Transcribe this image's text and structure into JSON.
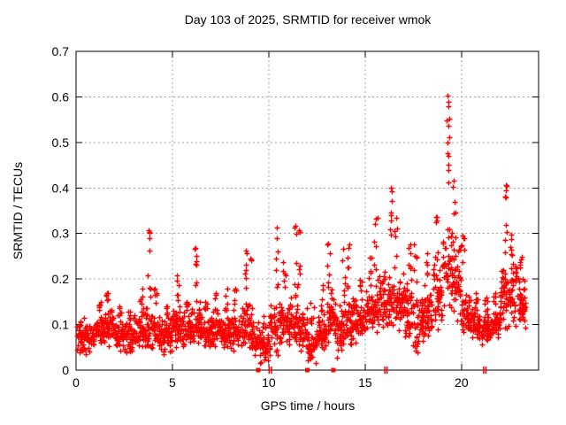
{
  "chart_data": {
    "type": "scatter",
    "title": "Day 103 of 2025, SRMTID for receiver wmok",
    "xlabel": "GPS time / hours",
    "ylabel": "SRMTID / TECUs",
    "xlim": [
      0,
      24
    ],
    "ylim": [
      0,
      0.7
    ],
    "xticks": [
      0,
      5,
      10,
      15,
      20
    ],
    "xtick_labels": [
      "0",
      "5",
      "10",
      "15",
      "20"
    ],
    "yticks": [
      0,
      0.1,
      0.2,
      0.3,
      0.4,
      0.5,
      0.6,
      0.7
    ],
    "ytick_labels": [
      "0",
      "0.1",
      "0.2",
      "0.3",
      "0.4",
      "0.5",
      "0.6",
      "0.7"
    ],
    "grid": true,
    "grid_color": "#a0a0a0",
    "marker": "plus",
    "marker_color": "#ff0000",
    "border_color": "#000000",
    "seed": 1032025,
    "points_per_bin": 44,
    "bins_format": [
      "t_start",
      "t_width",
      "y_low",
      "y_typical_high",
      "y_max",
      "peak_time_or_null"
    ],
    "bins": [
      [
        0.0,
        0.5,
        0.03,
        0.12,
        0.13,
        null
      ],
      [
        0.5,
        0.5,
        0.04,
        0.11,
        0.12,
        null
      ],
      [
        1.0,
        0.5,
        0.05,
        0.13,
        0.15,
        null
      ],
      [
        1.5,
        0.5,
        0.05,
        0.15,
        0.17,
        1.6
      ],
      [
        2.0,
        0.5,
        0.04,
        0.12,
        0.14,
        null
      ],
      [
        2.5,
        0.5,
        0.03,
        0.11,
        0.13,
        null
      ],
      [
        3.0,
        0.5,
        0.04,
        0.13,
        0.18,
        3.4
      ],
      [
        3.5,
        0.5,
        0.04,
        0.15,
        0.31,
        3.8
      ],
      [
        4.0,
        0.5,
        0.04,
        0.13,
        0.18,
        4.1
      ],
      [
        4.5,
        0.5,
        0.03,
        0.12,
        0.14,
        null
      ],
      [
        5.0,
        0.5,
        0.05,
        0.15,
        0.21,
        5.3
      ],
      [
        5.5,
        0.5,
        0.04,
        0.13,
        0.15,
        null
      ],
      [
        6.0,
        0.5,
        0.05,
        0.16,
        0.27,
        6.2
      ],
      [
        6.5,
        0.5,
        0.04,
        0.13,
        0.15,
        null
      ],
      [
        7.0,
        0.5,
        0.05,
        0.13,
        0.17,
        null
      ],
      [
        7.5,
        0.5,
        0.04,
        0.13,
        0.18,
        7.8
      ],
      [
        8.0,
        0.5,
        0.03,
        0.13,
        0.18,
        null
      ],
      [
        8.5,
        0.5,
        0.04,
        0.16,
        0.26,
        8.8
      ],
      [
        9.0,
        0.5,
        0.02,
        0.11,
        0.25,
        9.05
      ],
      [
        9.5,
        0.5,
        0.01,
        0.09,
        0.12,
        null
      ],
      [
        10.0,
        0.5,
        0.02,
        0.16,
        0.32,
        10.4
      ],
      [
        10.5,
        0.5,
        0.05,
        0.16,
        0.24,
        10.8
      ],
      [
        11.0,
        0.5,
        0.05,
        0.16,
        0.32,
        11.4
      ],
      [
        11.5,
        0.5,
        0.03,
        0.14,
        0.31,
        11.55
      ],
      [
        12.0,
        0.5,
        0.01,
        0.1,
        0.15,
        null
      ],
      [
        12.5,
        0.5,
        0.04,
        0.13,
        0.19,
        null
      ],
      [
        13.0,
        0.5,
        0.05,
        0.18,
        0.28,
        13.1
      ],
      [
        13.5,
        0.5,
        0.02,
        0.16,
        0.27,
        13.9
      ],
      [
        14.0,
        0.5,
        0.05,
        0.17,
        0.28,
        14.15
      ],
      [
        14.5,
        0.5,
        0.06,
        0.15,
        0.2,
        null
      ],
      [
        15.0,
        0.5,
        0.08,
        0.18,
        0.25,
        null
      ],
      [
        15.5,
        0.5,
        0.08,
        0.22,
        0.34,
        15.55
      ],
      [
        16.0,
        0.5,
        0.08,
        0.22,
        0.4,
        16.35
      ],
      [
        16.5,
        0.5,
        0.08,
        0.22,
        0.34,
        16.6
      ],
      [
        17.0,
        0.5,
        0.06,
        0.2,
        0.28,
        17.3
      ],
      [
        17.5,
        0.5,
        0.03,
        0.18,
        0.28,
        17.6
      ],
      [
        18.0,
        0.5,
        0.06,
        0.2,
        0.26,
        null
      ],
      [
        18.5,
        0.5,
        0.08,
        0.24,
        0.34,
        18.7
      ],
      [
        19.0,
        0.5,
        0.1,
        0.34,
        0.6,
        19.3
      ],
      [
        19.5,
        0.5,
        0.1,
        0.3,
        0.42,
        19.6
      ],
      [
        20.0,
        0.5,
        0.07,
        0.18,
        0.3,
        20.1
      ],
      [
        20.5,
        0.5,
        0.06,
        0.14,
        0.17,
        null
      ],
      [
        21.0,
        0.5,
        0.05,
        0.13,
        0.16,
        null
      ],
      [
        21.5,
        0.5,
        0.06,
        0.14,
        0.17,
        null
      ],
      [
        22.0,
        0.5,
        0.08,
        0.25,
        0.41,
        22.3
      ],
      [
        22.5,
        0.5,
        0.08,
        0.25,
        0.3,
        22.6
      ],
      [
        23.0,
        0.35,
        0.08,
        0.2,
        0.25,
        23.1
      ]
    ],
    "peak_points": [
      [
        3.78,
        0.307
      ],
      [
        3.8,
        0.29
      ],
      [
        3.82,
        0.262
      ],
      [
        6.2,
        0.268
      ],
      [
        6.23,
        0.24
      ],
      [
        8.8,
        0.262
      ],
      [
        10.4,
        0.313
      ],
      [
        10.43,
        0.29
      ],
      [
        11.38,
        0.317
      ],
      [
        11.42,
        0.3
      ],
      [
        13.08,
        0.278
      ],
      [
        14.15,
        0.268
      ],
      [
        15.55,
        0.333
      ],
      [
        16.35,
        0.4
      ],
      [
        16.4,
        0.372
      ],
      [
        18.7,
        0.337
      ],
      [
        19.28,
        0.603
      ],
      [
        19.3,
        0.58
      ],
      [
        19.31,
        0.537
      ],
      [
        19.29,
        0.5
      ],
      [
        19.33,
        0.47
      ],
      [
        19.3,
        0.452
      ],
      [
        19.32,
        0.44
      ],
      [
        22.3,
        0.407
      ],
      [
        22.32,
        0.395
      ],
      [
        22.28,
        0.38
      ]
    ],
    "zero_square_points_t": [
      9.45,
      12.0,
      13.35
    ],
    "zero_tick_points_t": [
      10.02,
      10.14,
      16.02,
      16.14,
      21.15,
      21.27
    ]
  }
}
